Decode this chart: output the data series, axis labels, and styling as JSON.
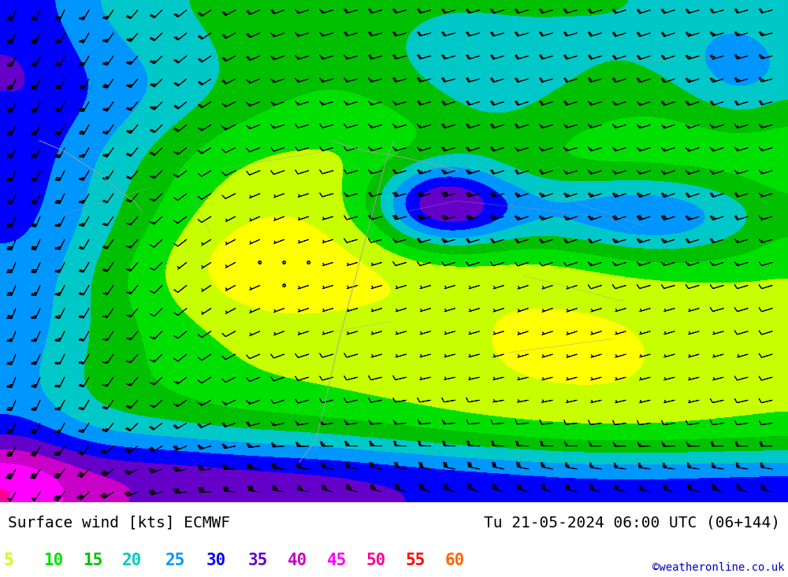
{
  "title_left": "Surface wind [kts] ECMWF",
  "title_right": "Tu 21-05-2024 06:00 UTC (06+144)",
  "credit": "©weatheronline.co.uk",
  "legend_values": [
    5,
    10,
    15,
    20,
    25,
    30,
    35,
    40,
    45,
    50,
    55,
    60
  ],
  "legend_colors": [
    "#c8ff00",
    "#00e000",
    "#00c000",
    "#00c8c8",
    "#0096ff",
    "#0000ff",
    "#6400c8",
    "#c800c8",
    "#ff00ff",
    "#ff0096",
    "#ff0000",
    "#ff6400"
  ],
  "wind_speed_levels": [
    0,
    5,
    10,
    15,
    20,
    25,
    30,
    35,
    40,
    45,
    50,
    55,
    60,
    100
  ],
  "wind_speed_colors": [
    "#ffff00",
    "#c8ff00",
    "#00e000",
    "#00c000",
    "#00c8c8",
    "#0096ff",
    "#0000ff",
    "#6400c8",
    "#c800c8",
    "#ff00ff",
    "#ff0096",
    "#ff0000",
    "#ff6400"
  ],
  "background_color": "#ffffff",
  "barb_color": "#000000",
  "border_color": "#a0a0a0",
  "title_fontsize": 14,
  "credit_fontsize": 10,
  "legend_fontsize": 15,
  "fig_width": 10.0,
  "fig_height": 7.33
}
